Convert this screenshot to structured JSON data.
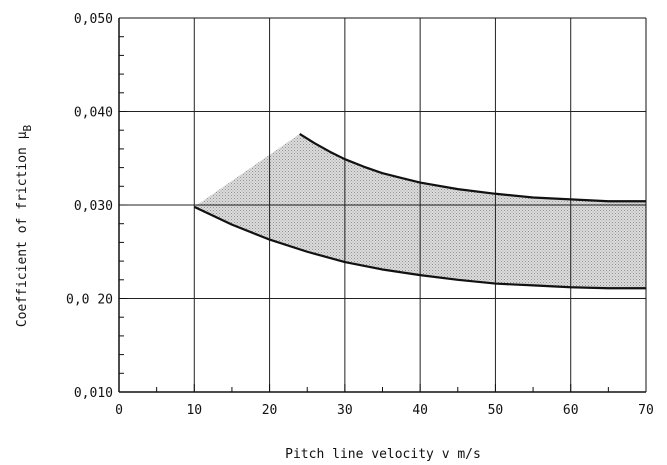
{
  "chart_data": {
    "type": "line",
    "xlabel": "Pitch line velocity v m/s",
    "ylabel": "Coefficient of friction μ",
    "ylabel_subscript": "B",
    "xlim": [
      0,
      70
    ],
    "ylim": [
      0.01,
      0.05
    ],
    "x_ticks": [
      0,
      10,
      20,
      30,
      40,
      50,
      60,
      70
    ],
    "x_tick_labels": [
      "0",
      "10",
      "20",
      "30",
      "40",
      "50",
      "60",
      "70"
    ],
    "y_ticks": [
      0.01,
      0.02,
      0.03,
      0.04,
      0.05
    ],
    "y_tick_labels": [
      "0,010",
      "0,0 20",
      "0,030",
      "0,040",
      "0,050"
    ],
    "grid": true,
    "minor_ticks": true,
    "series": [
      {
        "x": [
          24,
          26,
          28,
          30,
          32.5,
          35,
          37.5,
          40,
          45,
          50,
          55,
          60,
          65,
          70
        ],
        "y": [
          0.0376,
          0.0366,
          0.0357,
          0.0349,
          0.0341,
          0.0334,
          0.0329,
          0.0324,
          0.0317,
          0.0312,
          0.0308,
          0.0306,
          0.0304,
          0.0304
        ]
      },
      {
        "x": [
          10,
          15,
          20,
          25,
          30,
          35,
          40,
          45,
          50,
          55,
          60,
          65,
          70
        ],
        "y": [
          0.0298,
          0.0279,
          0.0263,
          0.025,
          0.0239,
          0.0231,
          0.0225,
          0.022,
          0.0216,
          0.0214,
          0.0212,
          0.0211,
          0.0211
        ]
      }
    ],
    "band_color": "#9c9c9c",
    "line_color": "#111111",
    "grid_color": "#222222"
  }
}
